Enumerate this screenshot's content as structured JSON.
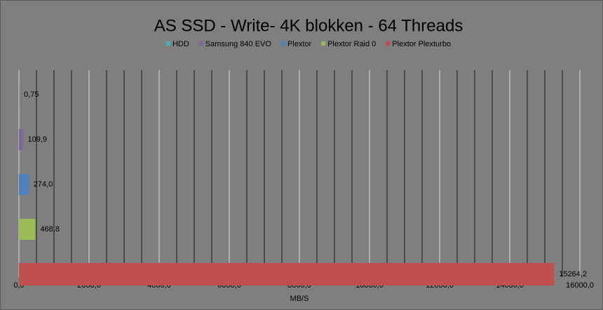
{
  "chart_data": {
    "type": "bar",
    "orientation": "horizontal",
    "title": "AS SSD - Write- 4K blokken - 64 Threads",
    "x_label": "MB/S",
    "series": [
      {
        "name": "HDD",
        "color": "#4bacc6",
        "values": [
          0.75
        ],
        "value_labels": [
          "0,75"
        ]
      },
      {
        "name": "Samsung 840 EVO",
        "color": "#8064a2",
        "values": [
          109.9
        ],
        "value_labels": [
          "109,9"
        ]
      },
      {
        "name": "Plextor",
        "color": "#4f81bd",
        "values": [
          274.0
        ],
        "value_labels": [
          "274,0"
        ]
      },
      {
        "name": "Plextor Raid 0",
        "color": "#9bbb59",
        "values": [
          468.8
        ],
        "value_labels": [
          "468,8"
        ]
      },
      {
        "name": "Plextor Plexturbo",
        "color": "#c0504d",
        "values": [
          15264.2
        ],
        "value_labels": [
          "15264,2"
        ]
      }
    ],
    "xlim": [
      0,
      16000
    ],
    "xticks": [
      {
        "value": 0,
        "label": "0,0"
      },
      {
        "value": 2000,
        "label": "2000,0"
      },
      {
        "value": 4000,
        "label": "4000,0"
      },
      {
        "value": 6000,
        "label": "6000,0"
      },
      {
        "value": 8000,
        "label": "8000,0"
      },
      {
        "value": 10000,
        "label": "10000,0"
      },
      {
        "value": 12000,
        "label": "12000,0"
      },
      {
        "value": 14000,
        "label": "14000,0"
      },
      {
        "value": 16000,
        "label": "16000,0"
      }
    ],
    "grid": true,
    "legend": "top"
  }
}
